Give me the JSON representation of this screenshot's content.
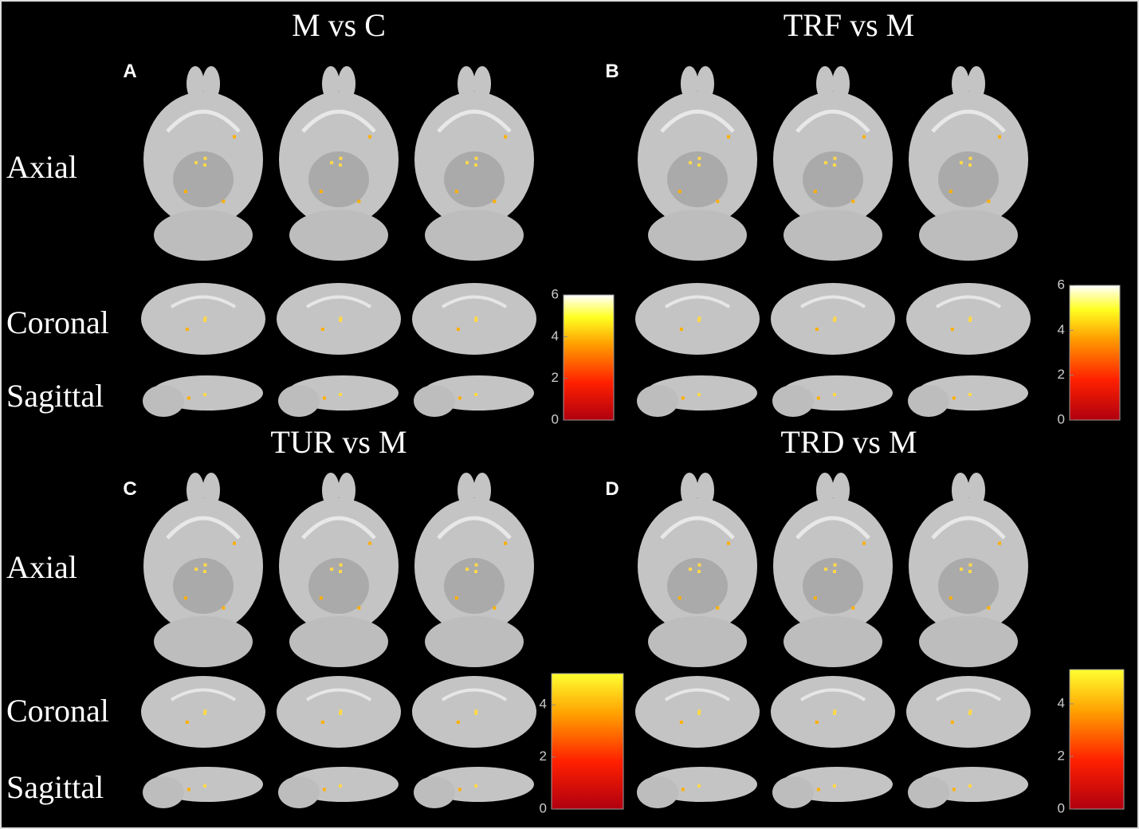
{
  "panels": [
    {
      "letter": "A",
      "title": "M vs C",
      "rows": [
        "Axial",
        "Coronal",
        "Sagittal"
      ],
      "colorbar": {
        "range": [
          0,
          6
        ],
        "ticks": [
          0,
          2,
          4,
          6
        ]
      }
    },
    {
      "letter": "B",
      "title": "TRF vs M",
      "colorbar": {
        "range": [
          0,
          6
        ],
        "ticks": [
          0,
          2,
          4,
          6
        ]
      }
    },
    {
      "letter": "C",
      "title": "TUR vs M",
      "rows": [
        "Axial",
        "Coronal",
        "Sagittal"
      ],
      "colorbar": {
        "range": [
          0,
          5.2
        ],
        "ticks": [
          0,
          2,
          4
        ]
      }
    },
    {
      "letter": "D",
      "title": "TRD vs M",
      "colorbar": {
        "range": [
          0,
          5.3
        ],
        "ticks": [
          0,
          2,
          4
        ]
      }
    }
  ]
}
